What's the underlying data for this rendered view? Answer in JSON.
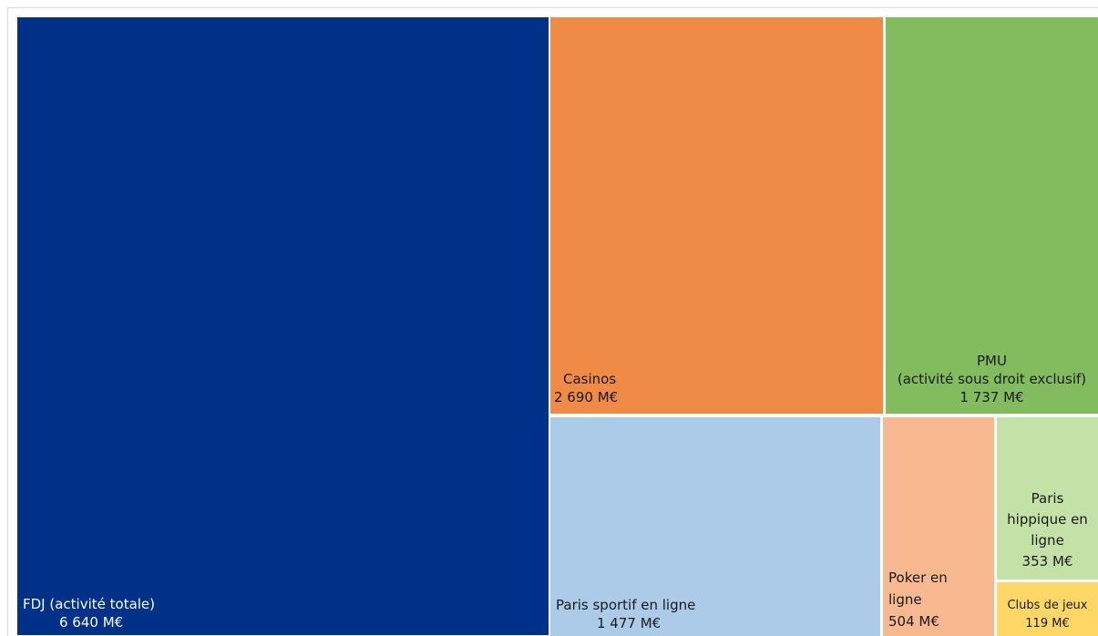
{
  "chart_data": {
    "type": "treemap",
    "title": "",
    "unit": "M€",
    "items": [
      {
        "key": "fdj",
        "name": "FDJ (activité totale)",
        "value": 6640,
        "value_label": "6 640 M€",
        "color": "#003189"
      },
      {
        "key": "casinos",
        "name": "Casinos",
        "value": 2690,
        "value_label": "2 690 M€",
        "color": "#ef8a47"
      },
      {
        "key": "pmu",
        "name_lines": [
          "PMU",
          "(activité sous droit exclusif)"
        ],
        "value": 1737,
        "value_label": "1 737 M€",
        "color": "#82bc5e"
      },
      {
        "key": "sportif",
        "name": "Paris sportif en ligne",
        "value": 1477,
        "value_label": "1 477 M€",
        "color": "#abcbe9"
      },
      {
        "key": "poker",
        "name_lines": [
          "Poker en",
          "ligne"
        ],
        "value": 504,
        "value_label": "504 M€",
        "color": "#f8b991"
      },
      {
        "key": "hippique",
        "name_lines": [
          "Paris",
          "hippique en",
          "ligne"
        ],
        "value": 353,
        "value_label": "353 M€",
        "color": "#c4e2a8"
      },
      {
        "key": "clubs",
        "name": "Clubs de jeux",
        "value": 119,
        "value_label": "119 M€",
        "color": "#fed766"
      }
    ]
  }
}
